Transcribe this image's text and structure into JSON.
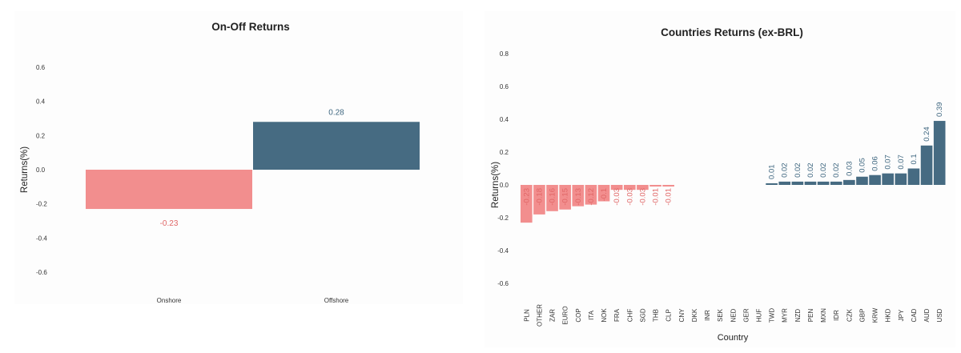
{
  "chart_data": [
    {
      "type": "bar",
      "title": "On-Off Returns",
      "xlabel": "",
      "ylabel": "Returns(%)",
      "categories": [
        "Onshore",
        "Offshore"
      ],
      "values": [
        -0.23,
        0.28
      ],
      "data_labels": [
        "-0.23",
        "0.28"
      ],
      "yticks": [
        "-0.6",
        "-0.4",
        "-0.2",
        "0.0",
        "0.2",
        "0.4",
        "0.6"
      ],
      "ylim": [
        -0.7,
        0.7
      ],
      "grid": false,
      "negative_color": "#f28e8e",
      "positive_color": "#466b82"
    },
    {
      "type": "bar",
      "title": "Countries Returns (ex-BRL)",
      "xlabel": "Country",
      "ylabel": "Returns(%)",
      "categories": [
        "PLN",
        "OTHER",
        "ZAR",
        "EURO",
        "COP",
        "ITA",
        "NOK",
        "FRA",
        "CHF",
        "SGD",
        "THB",
        "CLP",
        "CNY",
        "DKK",
        "INR",
        "SEK",
        "NED",
        "GER",
        "HUF",
        "TWD",
        "MYR",
        "NZD",
        "PEN",
        "MXN",
        "IDR",
        "CZK",
        "GBP",
        "KRW",
        "HKD",
        "JPY",
        "CAD",
        "AUD",
        "USD"
      ],
      "values": [
        -0.23,
        -0.18,
        -0.16,
        -0.15,
        -0.13,
        -0.12,
        -0.1,
        -0.03,
        -0.03,
        -0.03,
        -0.01,
        -0.01,
        0,
        0,
        0,
        0,
        0,
        0,
        0,
        0.01,
        0.02,
        0.02,
        0.02,
        0.02,
        0.02,
        0.03,
        0.05,
        0.06,
        0.07,
        0.07,
        0.1,
        0.24,
        0.39
      ],
      "data_labels": [
        "-0.23",
        "-0.18",
        "-0.16",
        "-0.15",
        "-0.13",
        "-0.12",
        "-0.1",
        "-0.03",
        "-0.03",
        "-0.03",
        "-0.01",
        "-0.01",
        "",
        "",
        "",
        "",
        "",
        "",
        "",
        "0.01",
        "0.02",
        "0.02",
        "0.02",
        "0.02",
        "0.02",
        "0.03",
        "0.05",
        "0.06",
        "0.07",
        "0.07",
        "0.1",
        "0.24",
        "0.39"
      ],
      "yticks": [
        "-0.6",
        "-0.4",
        "-0.2",
        "0.0",
        "0.2",
        "0.4",
        "0.6",
        "0.8"
      ],
      "ylim": [
        -0.7,
        0.85
      ],
      "grid": false,
      "negative_color": "#f28e8e",
      "positive_color": "#466b82"
    }
  ]
}
